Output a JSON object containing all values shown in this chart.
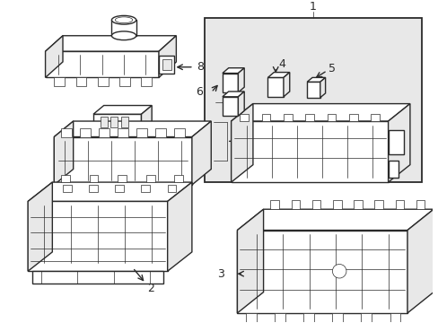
{
  "background_color": "#ffffff",
  "line_color": "#2a2a2a",
  "lw_main": 1.0,
  "lw_thin": 0.5,
  "fig_width": 4.89,
  "fig_height": 3.6,
  "dpi": 100,
  "label_fontsize": 8.5,
  "gray_fill": "#e8e8e8",
  "white_fill": "#ffffff"
}
